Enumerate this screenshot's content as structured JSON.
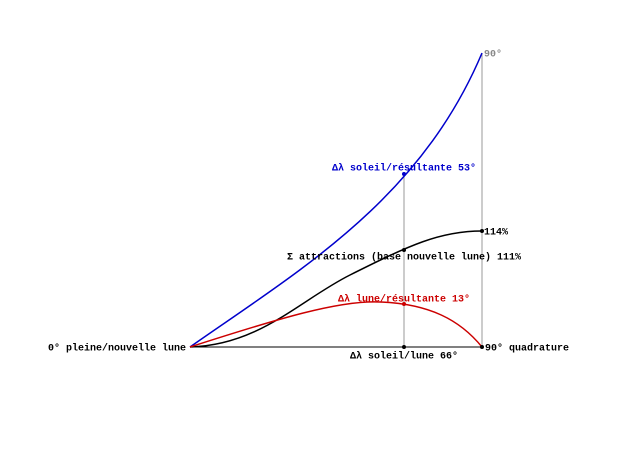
{
  "labels": {
    "top_angle": "90°",
    "sun_resultant": "Δλ soleil/résultante 53°",
    "attractions_max": "114%",
    "attractions": "Σ attractions (base nouvelle lune) 111%",
    "moon_resultant": "Δλ lune/résultante 13°",
    "origin": "0° pleine/nouvelle lune",
    "quadrature": "90° quadrature",
    "sun_moon": "Δλ soleil/lune 66°"
  }
}
